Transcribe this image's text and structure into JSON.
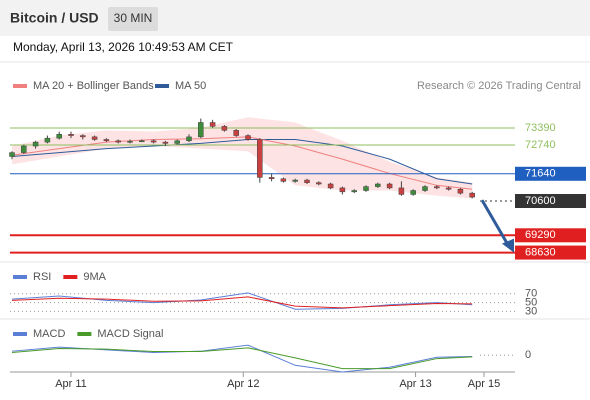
{
  "header": {
    "title": "Bitcoin / USD",
    "timeframe": "30 MIN",
    "datetime": "Monday, April 13, 2026 10:49:53 AM CET"
  },
  "chart_data": {
    "type": "candlestick",
    "legend": {
      "ma20": "MA 20 + Bollinger Bands",
      "ma50": "MA 50",
      "credit": "Research © 2026 Trading Central"
    },
    "xlim": [
      0,
      40
    ],
    "xticks": [
      {
        "value": 5,
        "label": "Apr 11"
      },
      {
        "value": 19.6,
        "label": "Apr 12"
      },
      {
        "value": 34.2,
        "label": "Apr 13"
      },
      {
        "value": 40,
        "label": "Apr 15"
      }
    ],
    "ylim": [
      68270,
      75910
    ],
    "up_color": "#3c8c3c",
    "down_color": "#c84040",
    "candles": [
      [
        72300,
        72500,
        72200,
        72450
      ],
      [
        72450,
        72750,
        72400,
        72700
      ],
      [
        72700,
        72900,
        72600,
        72850
      ],
      [
        72850,
        73100,
        72800,
        73000
      ],
      [
        73000,
        73250,
        72950,
        73150
      ],
      [
        73150,
        73250,
        73000,
        73100
      ],
      [
        73100,
        73150,
        72950,
        73050
      ],
      [
        73050,
        73100,
        72900,
        72950
      ],
      [
        72950,
        73000,
        72850,
        72900
      ],
      [
        72900,
        72950,
        72800,
        72850
      ],
      [
        72850,
        72950,
        72800,
        72880
      ],
      [
        72880,
        72950,
        72850,
        72900
      ],
      [
        72900,
        72950,
        72800,
        72850
      ],
      [
        72850,
        72900,
        72700,
        72800
      ],
      [
        72800,
        72950,
        72750,
        72900
      ],
      [
        72900,
        73150,
        72850,
        73050
      ],
      [
        73050,
        73750,
        73000,
        73600
      ],
      [
        73600,
        73700,
        73400,
        73450
      ],
      [
        73450,
        73500,
        73250,
        73300
      ],
      [
        73300,
        73350,
        73050,
        73100
      ],
      [
        73100,
        73150,
        72900,
        72950
      ],
      [
        72950,
        73000,
        71300,
        71500
      ],
      [
        71500,
        71650,
        71350,
        71450
      ],
      [
        71450,
        71500,
        71300,
        71350
      ],
      [
        71350,
        71450,
        71300,
        71400
      ],
      [
        71400,
        71450,
        71250,
        71300
      ],
      [
        71300,
        71350,
        71200,
        71250
      ],
      [
        71250,
        71300,
        71050,
        71100
      ],
      [
        71100,
        71150,
        70850,
        70950
      ],
      [
        70950,
        71050,
        70900,
        71000
      ],
      [
        71000,
        71200,
        70950,
        71150
      ],
      [
        71150,
        71300,
        71100,
        71250
      ],
      [
        71250,
        71300,
        71050,
        71100
      ],
      [
        71100,
        71350,
        70800,
        70850
      ],
      [
        70850,
        71050,
        70800,
        71000
      ],
      [
        71000,
        71200,
        70950,
        71150
      ],
      [
        71150,
        71200,
        71050,
        71100
      ],
      [
        71100,
        71150,
        71000,
        71050
      ],
      [
        71050,
        71100,
        70850,
        70900
      ],
      [
        70900,
        70950,
        70700,
        70750
      ]
    ],
    "indicator_x": [
      0,
      4,
      8,
      12,
      16,
      20,
      24,
      28,
      32,
      36,
      39
    ],
    "ma20": {
      "color": "#f08080",
      "values": [
        72350,
        72600,
        72850,
        72950,
        72980,
        73050,
        72700,
        72200,
        71650,
        71200,
        71050
      ]
    },
    "ma50": {
      "color": "#2f5b9a",
      "values": [
        72300,
        72450,
        72600,
        72700,
        72800,
        72950,
        72950,
        72700,
        72200,
        71450,
        71250
      ]
    },
    "bollinger": {
      "color": "#fde3e3",
      "upper": [
        72700,
        73100,
        73300,
        73250,
        73400,
        73800,
        73600,
        72900,
        72100,
        71500,
        71300
      ],
      "lower": [
        72000,
        72300,
        72600,
        72700,
        72600,
        72500,
        71200,
        71000,
        71000,
        70800,
        70700
      ]
    },
    "levels": [
      {
        "value": 73390,
        "color": "#8fbf5f",
        "style": "solid",
        "label_style": "text"
      },
      {
        "value": 72740,
        "color": "#8fbf5f",
        "style": "solid",
        "label_style": "text"
      },
      {
        "value": 71640,
        "color": "#1f5fbf",
        "style": "solid",
        "label_style": "box"
      },
      {
        "value": 70600,
        "color": "#333333",
        "style": "dotted",
        "label_style": "box"
      },
      {
        "value": 69290,
        "color": "#e02020",
        "style": "solid",
        "label_style": "box"
      },
      {
        "value": 68630,
        "color": "#e02020",
        "style": "solid",
        "label_style": "box"
      }
    ],
    "rsi": {
      "ylim": [
        15,
        90
      ],
      "yticks": [
        30,
        50,
        70
      ],
      "series": [
        {
          "name": "RSI",
          "color": "#5b7fd6",
          "values": [
            58,
            65,
            55,
            50,
            56,
            72,
            35,
            37,
            45,
            50,
            45
          ]
        },
        {
          "name": "9MA",
          "color": "#e02020",
          "values": [
            55,
            60,
            58,
            53,
            54,
            63,
            42,
            38,
            43,
            48,
            47
          ]
        }
      ]
    },
    "macd": {
      "ylim": [
        -250,
        450
      ],
      "yticks": [
        0
      ],
      "series": [
        {
          "name": "MACD",
          "color": "#5b7fd6",
          "values": [
            60,
            120,
            80,
            40,
            60,
            150,
            -150,
            -250,
            -180,
            -30,
            -20
          ]
        },
        {
          "name": "MACD Signal",
          "color": "#4a9a2a",
          "values": [
            40,
            100,
            90,
            55,
            55,
            110,
            -40,
            -200,
            -200,
            -50,
            -25
          ]
        }
      ]
    }
  }
}
